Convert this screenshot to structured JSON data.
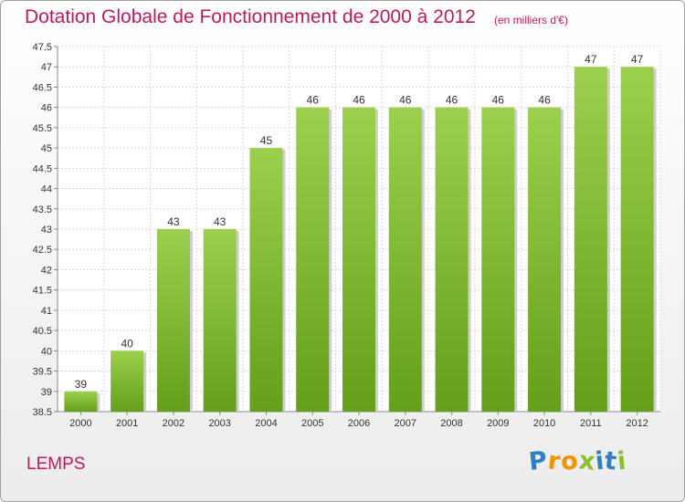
{
  "chart_data": {
    "type": "bar",
    "title": "Dotation Globale de Fonctionnement de 2000 à 2012",
    "subtitle": "(en milliers d'€)",
    "categories": [
      "2000",
      "2001",
      "2002",
      "2003",
      "2004",
      "2005",
      "2006",
      "2007",
      "2008",
      "2009",
      "2010",
      "2011",
      "2012"
    ],
    "values": [
      39,
      40,
      43,
      43,
      45,
      46,
      46,
      46,
      46,
      46,
      46,
      47,
      47
    ],
    "data_labels": [
      "39",
      "40",
      "43",
      "43",
      "45",
      "46",
      "46",
      "46",
      "46",
      "46",
      "46",
      "47",
      "47"
    ],
    "ylim": [
      38.5,
      47.5
    ],
    "yticks": [
      "38.5",
      "39",
      "39.5",
      "40",
      "40.5",
      "41",
      "41.5",
      "42",
      "42.5",
      "43",
      "43.5",
      "44",
      "44.5",
      "45",
      "45.5",
      "46",
      "46.5",
      "47",
      "47.5"
    ],
    "grid": true,
    "bar_color": "#7dbd2b"
  },
  "footer": {
    "place": "LEMPS",
    "logo_letters": [
      {
        "ch": "P",
        "color": "#2f7fc7"
      },
      {
        "ch": "r",
        "color": "#f39200"
      },
      {
        "ch": "o",
        "color": "#f39200"
      },
      {
        "ch": "x",
        "color": "#8cbf2e"
      },
      {
        "ch": "i",
        "color": "#2f7fc7"
      },
      {
        "ch": "t",
        "color": "#2f7fc7"
      },
      {
        "ch": "i",
        "color": "#8cbf2e"
      }
    ]
  },
  "colors": {
    "accent": "#c2185b"
  }
}
